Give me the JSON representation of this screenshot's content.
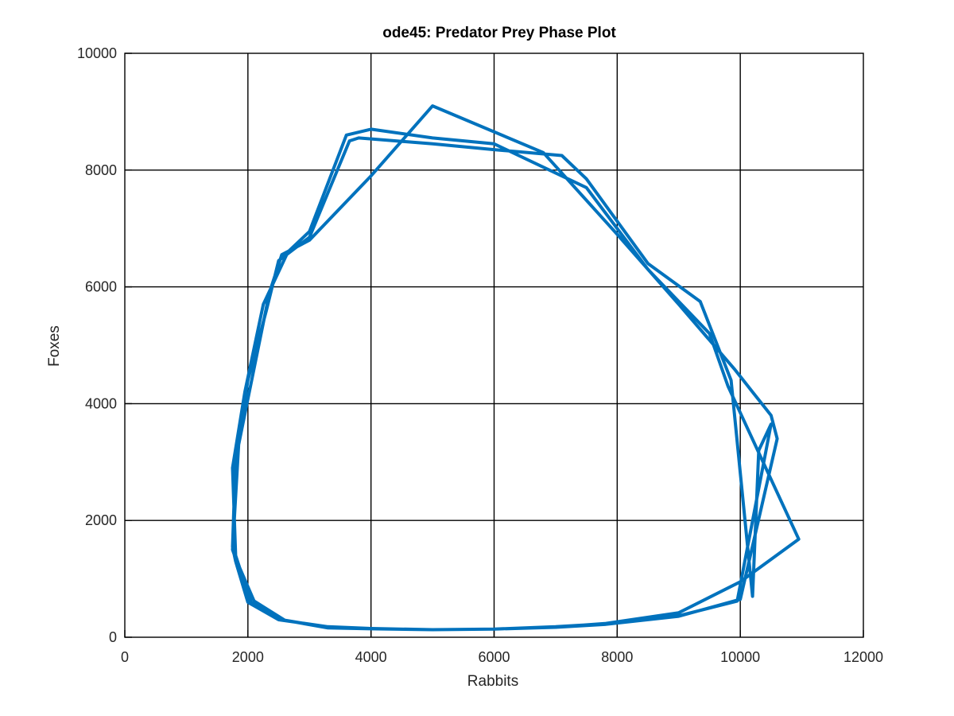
{
  "chart_data": {
    "type": "line",
    "title": "ode45: Predator Prey Phase Plot",
    "xlabel": "Rabbits",
    "ylabel": "Foxes",
    "xlim": [
      0,
      12000
    ],
    "ylim": [
      0,
      10000
    ],
    "xticks": [
      0,
      2000,
      4000,
      6000,
      8000,
      10000,
      12000
    ],
    "yticks": [
      0,
      2000,
      4000,
      6000,
      8000,
      10000
    ],
    "grid": true,
    "series": [
      {
        "color": "#0072bd",
        "x": [
          1800,
          2050,
          2550,
          3300,
          4000,
          5000,
          6000,
          7000,
          7800,
          9050,
          9950,
          10500,
          10300,
          10200,
          9850,
          9350,
          8500,
          7500,
          7100,
          6000,
          5000,
          3800,
          3650,
          3000,
          2500,
          2300,
          2000,
          1800,
          1750,
          1800,
          2000,
          2500,
          3300,
          4000,
          5000,
          6000,
          7000,
          7800,
          9000,
          10000,
          10600,
          10500,
          10200,
          10050,
          9900,
          9000,
          8000,
          6800,
          5000,
          4000,
          3000,
          2550,
          2350,
          1850,
          1750,
          1800,
          2100,
          2600,
          3300,
          4000,
          5000,
          6000,
          7000,
          7800,
          9000,
          10000,
          10950,
          9800,
          9500,
          8500,
          7500,
          6000,
          5000,
          4000,
          3600,
          3000,
          2650,
          2250,
          1950,
          1750,
          1800
        ],
        "y": [
          1400,
          600,
          300,
          170,
          150,
          130,
          140,
          180,
          230,
          380,
          620,
          3650,
          3200,
          700,
          4400,
          5750,
          6400,
          7850,
          8250,
          8350,
          8450,
          8550,
          8500,
          6850,
          6450,
          5600,
          4400,
          3100,
          1550,
          1300,
          600,
          300,
          180,
          150,
          130,
          140,
          170,
          220,
          360,
          650,
          3400,
          3800,
          4200,
          4400,
          4600,
          5700,
          6900,
          8300,
          9100,
          7900,
          6800,
          6550,
          5900,
          3300,
          1500,
          1350,
          620,
          290,
          160,
          145,
          130,
          140,
          175,
          235,
          420,
          950,
          1680,
          4300,
          5200,
          6300,
          7700,
          8450,
          8550,
          8700,
          8600,
          6950,
          6600,
          5700,
          4200,
          2900,
          1400
        ]
      }
    ]
  }
}
